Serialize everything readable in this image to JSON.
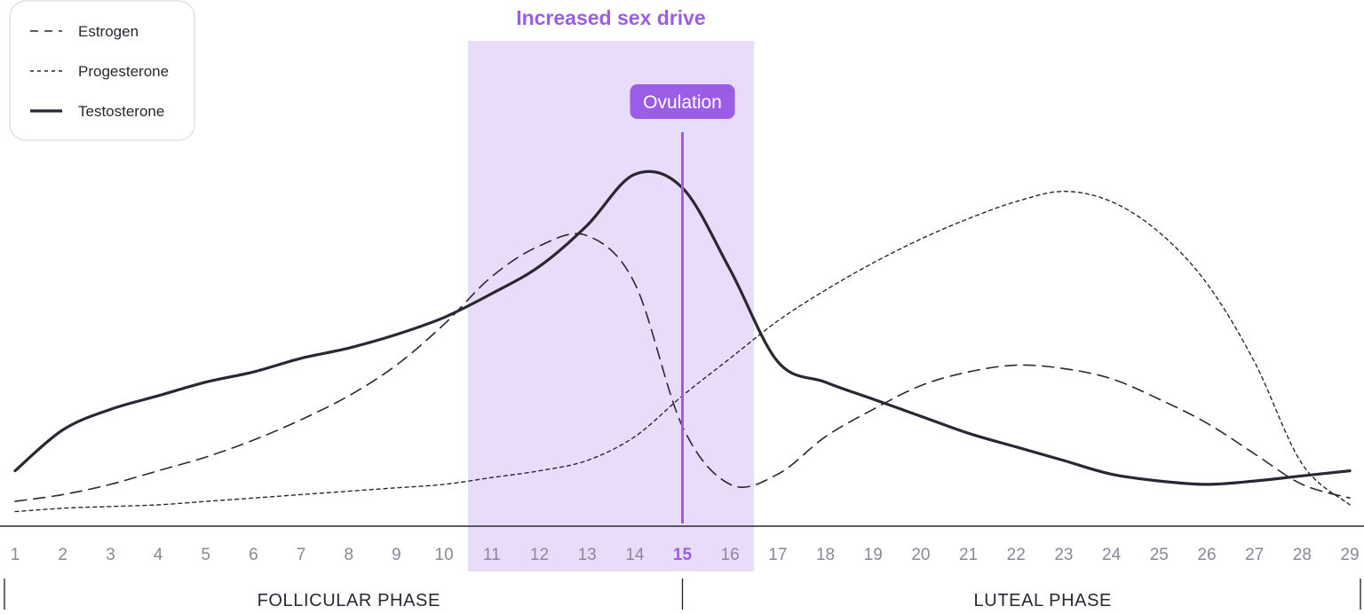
{
  "chart_data": {
    "type": "line",
    "title": "",
    "xlabel": "",
    "ylabel": "",
    "x": [
      1,
      2,
      3,
      4,
      5,
      6,
      7,
      8,
      9,
      10,
      11,
      12,
      13,
      14,
      15,
      16,
      17,
      18,
      19,
      20,
      21,
      22,
      23,
      24,
      25,
      26,
      27,
      28,
      29
    ],
    "highlight_label": "Increased sex drive",
    "highlight_range": [
      10.5,
      16.5
    ],
    "marker": {
      "label": "Ovulation",
      "day": 15
    },
    "phases": [
      {
        "label": "FOLLICULAR PHASE",
        "from": 1,
        "to": 15
      },
      {
        "label": "LUTEAL PHASE",
        "from": 15,
        "to": 29
      }
    ],
    "ylim": [
      0,
      100
    ],
    "grid": false,
    "legend_position": "top-left",
    "series": [
      {
        "name": "Estrogen",
        "style": "dashed",
        "values": [
          7,
          9,
          12,
          16,
          20,
          25,
          31,
          38,
          47,
          59,
          73,
          82,
          85,
          71,
          29,
          12,
          15,
          26,
          34,
          41,
          45,
          47,
          46,
          43,
          37,
          30,
          21,
          12,
          8
        ]
      },
      {
        "name": "Progesterone",
        "style": "dotted",
        "values": [
          4,
          5,
          5.5,
          6,
          7,
          8,
          9,
          10,
          11,
          12,
          14,
          16,
          19,
          26,
          38,
          49,
          60,
          69,
          77,
          84,
          90,
          95,
          98,
          95,
          86,
          71,
          48,
          18,
          6
        ]
      },
      {
        "name": "Testosterone",
        "style": "solid",
        "values": [
          16,
          28,
          34,
          38,
          42,
          45,
          49,
          52,
          56,
          61,
          68,
          76,
          88,
          103,
          99,
          75,
          48,
          42,
          37,
          32,
          27,
          23,
          19,
          15,
          13,
          12,
          13,
          14.5,
          16
        ]
      }
    ],
    "colors": {
      "accent": "#9b5de5",
      "highlight_fill": "#e8dcfa",
      "line": "#2a2733",
      "tick": "#8a8797",
      "legend_border": "#e2e0e8"
    }
  }
}
